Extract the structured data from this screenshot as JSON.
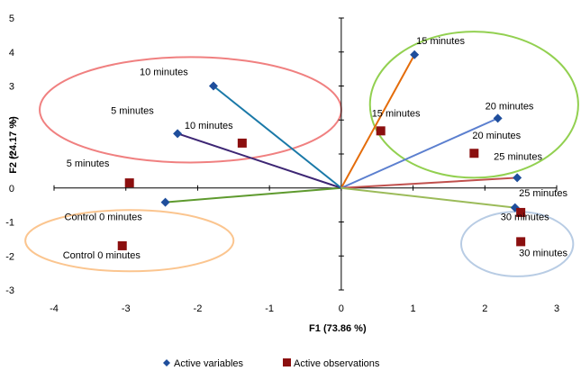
{
  "chart_data": {
    "type": "scatter",
    "subtype": "biplot",
    "xlabel": "F1 (73.86 %)",
    "ylabel": "F2 (24.17 %)",
    "xlim": [
      -4,
      3
    ],
    "ylim": [
      -3,
      5
    ],
    "xticks": [
      "-4",
      "-3",
      "-2",
      "-1",
      "0",
      "1",
      "2",
      "3"
    ],
    "yticks": [
      "-3",
      "-2",
      "-1",
      "0",
      "1",
      "2",
      "3",
      "4",
      "5"
    ],
    "grid": false,
    "legend_position": "bottom",
    "series": [
      {
        "name": "Active variables",
        "marker": "diamond",
        "color": "#1f4e9c",
        "points": [
          {
            "label": "Control 0 minutes",
            "x": -2.45,
            "y": -0.42,
            "vector_color": "#5e9a2e"
          },
          {
            "label": "5 minutes",
            "x": -2.28,
            "y": 1.6,
            "vector_color": "#3d2674"
          },
          {
            "label": "10 minutes",
            "x": -1.78,
            "y": 3.0,
            "vector_color": "#1a79a8"
          },
          {
            "label": "15 minutes",
            "x": 1.02,
            "y": 3.92,
            "vector_color": "#e46c0a"
          },
          {
            "label": "20 minutes",
            "x": 2.18,
            "y": 2.05,
            "vector_color": "#5b7fcf"
          },
          {
            "label": "25 minutes",
            "x": 2.45,
            "y": 0.3,
            "vector_color": "#c0504d"
          },
          {
            "label": "30 minutes",
            "x": 2.42,
            "y": -0.58,
            "vector_color": "#9bbb59"
          }
        ]
      },
      {
        "name": "Active observations",
        "marker": "square",
        "color": "#8b0f0f",
        "points": [
          {
            "label": "Control 0 minutes",
            "x": -3.05,
            "y": -1.7
          },
          {
            "label": "5 minutes",
            "x": -2.95,
            "y": 0.15
          },
          {
            "label": "10 minutes",
            "x": -1.38,
            "y": 1.32
          },
          {
            "label": "15 minutes",
            "x": 0.55,
            "y": 1.68
          },
          {
            "label": "20 minutes",
            "x": 1.85,
            "y": 1.02
          },
          {
            "label": "25 minutes",
            "x": 2.5,
            "y": -0.72
          },
          {
            "label": "30 minutes",
            "x": 2.5,
            "y": -1.58
          }
        ]
      }
    ],
    "groupings": [
      {
        "color": "#f08080",
        "cx": -2.1,
        "cy": 2.3,
        "rx": 2.1,
        "ry": 1.55
      },
      {
        "color": "#fbc58f",
        "cx": -2.95,
        "cy": -1.55,
        "rx": 1.45,
        "ry": 0.9
      },
      {
        "color": "#92d050",
        "cx": 1.85,
        "cy": 2.45,
        "rx": 1.45,
        "ry": 2.15
      },
      {
        "color": "#b8cce4",
        "cx": 2.45,
        "cy": -1.65,
        "rx": 0.78,
        "ry": 0.95
      }
    ]
  }
}
